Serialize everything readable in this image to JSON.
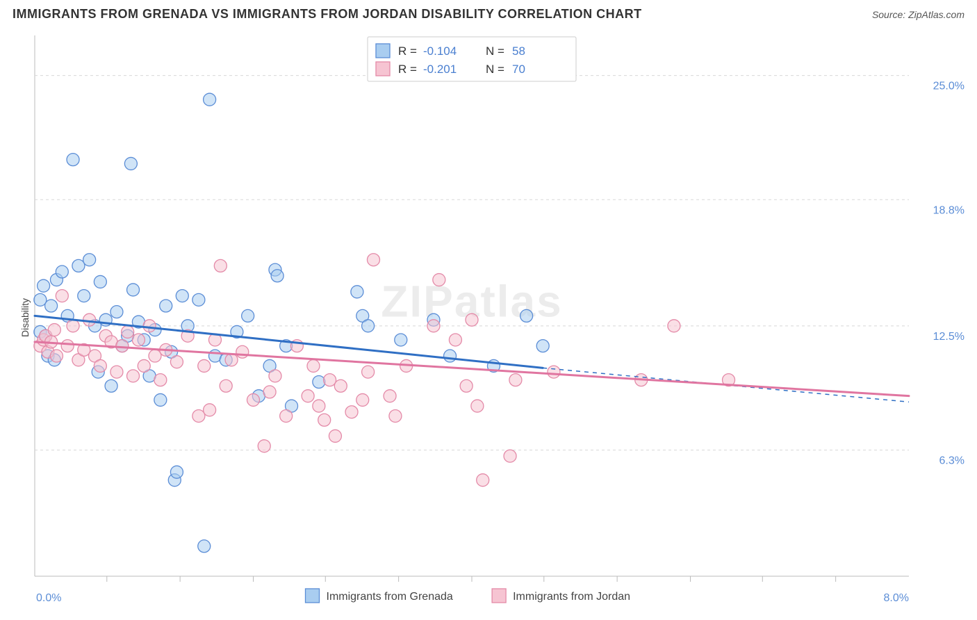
{
  "header": {
    "title": "IMMIGRANTS FROM GRENADA VS IMMIGRANTS FROM JORDAN DISABILITY CORRELATION CHART",
    "source_prefix": "Source: ",
    "source_name": "ZipAtlas.com"
  },
  "chart": {
    "type": "scatter",
    "ylabel": "Disability",
    "watermark": "ZIPatlas",
    "background_color": "#ffffff",
    "plot_border_color": "#bbbbbb",
    "grid_color": "#d8d8d8",
    "xlim": [
      0.0,
      8.0
    ],
    "ylim": [
      0.0,
      27.0
    ],
    "xticks": [
      0.66,
      1.33,
      2.0,
      2.66,
      3.33,
      4.0,
      4.66,
      5.33,
      6.0,
      6.66,
      7.33
    ],
    "yticks": [
      {
        "v": 25.0,
        "label": "25.0%"
      },
      {
        "v": 18.8,
        "label": "18.8%"
      },
      {
        "v": 12.5,
        "label": "12.5%"
      },
      {
        "v": 6.3,
        "label": "6.3%"
      }
    ],
    "x_axis_labels": {
      "left": "0.0%",
      "right": "8.0%"
    },
    "marker_radius": 9,
    "marker_stroke_width": 1.3,
    "series": [
      {
        "name": "Immigrants from Grenada",
        "fill": "#a9cdf0",
        "stroke": "#5b8dd6",
        "fill_opacity": 0.55,
        "points": [
          [
            0.05,
            13.8
          ],
          [
            0.05,
            12.2
          ],
          [
            0.08,
            14.5
          ],
          [
            0.1,
            12.0
          ],
          [
            0.12,
            11.0
          ],
          [
            0.15,
            13.5
          ],
          [
            0.18,
            10.8
          ],
          [
            0.2,
            14.8
          ],
          [
            0.25,
            15.2
          ],
          [
            0.3,
            13.0
          ],
          [
            0.35,
            20.8
          ],
          [
            0.4,
            15.5
          ],
          [
            0.45,
            14.0
          ],
          [
            0.5,
            15.8
          ],
          [
            0.55,
            12.5
          ],
          [
            0.58,
            10.2
          ],
          [
            0.6,
            14.7
          ],
          [
            0.65,
            12.8
          ],
          [
            0.7,
            9.5
          ],
          [
            0.75,
            13.2
          ],
          [
            0.8,
            11.5
          ],
          [
            0.85,
            12.0
          ],
          [
            0.88,
            20.6
          ],
          [
            0.9,
            14.3
          ],
          [
            0.95,
            12.7
          ],
          [
            1.0,
            11.8
          ],
          [
            1.05,
            10.0
          ],
          [
            1.1,
            12.3
          ],
          [
            1.15,
            8.8
          ],
          [
            1.2,
            13.5
          ],
          [
            1.25,
            11.2
          ],
          [
            1.28,
            4.8
          ],
          [
            1.3,
            5.2
          ],
          [
            1.35,
            14.0
          ],
          [
            1.4,
            12.5
          ],
          [
            1.5,
            13.8
          ],
          [
            1.55,
            1.5
          ],
          [
            1.6,
            23.8
          ],
          [
            1.65,
            11.0
          ],
          [
            1.75,
            10.8
          ],
          [
            1.85,
            12.2
          ],
          [
            1.95,
            13.0
          ],
          [
            2.05,
            9.0
          ],
          [
            2.15,
            10.5
          ],
          [
            2.2,
            15.3
          ],
          [
            2.22,
            15.0
          ],
          [
            2.3,
            11.5
          ],
          [
            2.35,
            8.5
          ],
          [
            2.6,
            9.7
          ],
          [
            2.95,
            14.2
          ],
          [
            3.0,
            13.0
          ],
          [
            3.05,
            12.5
          ],
          [
            3.35,
            11.8
          ],
          [
            3.65,
            12.8
          ],
          [
            3.8,
            11.0
          ],
          [
            4.2,
            10.5
          ],
          [
            4.5,
            13.0
          ],
          [
            4.65,
            11.5
          ]
        ],
        "trend": {
          "y_at_xmin": 13.0,
          "y_at_xsolid_end": 10.4,
          "y_at_xmax": 8.7,
          "solid_end_x": 4.65,
          "color": "#2f6fc4",
          "width": 3
        }
      },
      {
        "name": "Immigrants from Jordan",
        "fill": "#f6c4d2",
        "stroke": "#e48aa8",
        "fill_opacity": 0.55,
        "points": [
          [
            0.05,
            11.5
          ],
          [
            0.08,
            11.8
          ],
          [
            0.1,
            12.0
          ],
          [
            0.12,
            11.2
          ],
          [
            0.15,
            11.7
          ],
          [
            0.18,
            12.3
          ],
          [
            0.2,
            11.0
          ],
          [
            0.25,
            14.0
          ],
          [
            0.3,
            11.5
          ],
          [
            0.35,
            12.5
          ],
          [
            0.4,
            10.8
          ],
          [
            0.45,
            11.3
          ],
          [
            0.5,
            12.8
          ],
          [
            0.55,
            11.0
          ],
          [
            0.6,
            10.5
          ],
          [
            0.65,
            12.0
          ],
          [
            0.7,
            11.7
          ],
          [
            0.75,
            10.2
          ],
          [
            0.8,
            11.5
          ],
          [
            0.85,
            12.2
          ],
          [
            0.9,
            10.0
          ],
          [
            0.95,
            11.8
          ],
          [
            1.0,
            10.5
          ],
          [
            1.05,
            12.5
          ],
          [
            1.1,
            11.0
          ],
          [
            1.15,
            9.8
          ],
          [
            1.2,
            11.3
          ],
          [
            1.3,
            10.7
          ],
          [
            1.4,
            12.0
          ],
          [
            1.5,
            8.0
          ],
          [
            1.55,
            10.5
          ],
          [
            1.6,
            8.3
          ],
          [
            1.65,
            11.8
          ],
          [
            1.7,
            15.5
          ],
          [
            1.75,
            9.5
          ],
          [
            1.8,
            10.8
          ],
          [
            1.9,
            11.2
          ],
          [
            2.0,
            8.8
          ],
          [
            2.1,
            6.5
          ],
          [
            2.15,
            9.2
          ],
          [
            2.2,
            10.0
          ],
          [
            2.3,
            8.0
          ],
          [
            2.4,
            11.5
          ],
          [
            2.5,
            9.0
          ],
          [
            2.55,
            10.5
          ],
          [
            2.6,
            8.5
          ],
          [
            2.65,
            7.8
          ],
          [
            2.7,
            9.8
          ],
          [
            2.75,
            7.0
          ],
          [
            2.8,
            9.5
          ],
          [
            2.9,
            8.2
          ],
          [
            3.0,
            8.8
          ],
          [
            3.05,
            10.2
          ],
          [
            3.1,
            15.8
          ],
          [
            3.25,
            9.0
          ],
          [
            3.3,
            8.0
          ],
          [
            3.4,
            10.5
          ],
          [
            3.65,
            12.5
          ],
          [
            3.7,
            14.8
          ],
          [
            3.85,
            11.8
          ],
          [
            3.95,
            9.5
          ],
          [
            4.0,
            12.8
          ],
          [
            4.05,
            8.5
          ],
          [
            4.1,
            4.8
          ],
          [
            4.35,
            6.0
          ],
          [
            4.4,
            9.8
          ],
          [
            4.75,
            10.2
          ],
          [
            5.55,
            9.8
          ],
          [
            5.85,
            12.5
          ],
          [
            6.35,
            9.8
          ]
        ],
        "trend": {
          "y_at_xmin": 11.7,
          "y_at_xsolid_end": 9.0,
          "y_at_xmax": 9.0,
          "solid_end_x": 8.0,
          "color": "#e075a0",
          "width": 3
        }
      }
    ],
    "legend_top": [
      {
        "swatch_fill": "#a9cdf0",
        "swatch_stroke": "#5b8dd6",
        "r_label": "R =",
        "r_value": "-0.104",
        "n_label": "N =",
        "n_value": "58"
      },
      {
        "swatch_fill": "#f6c4d2",
        "swatch_stroke": "#e48aa8",
        "r_label": "R =",
        "r_value": "-0.201",
        "n_label": "N =",
        "n_value": "70"
      }
    ],
    "legend_bottom": [
      {
        "swatch_fill": "#a9cdf0",
        "swatch_stroke": "#5b8dd6",
        "label": "Immigrants from Grenada"
      },
      {
        "swatch_fill": "#f6c4d2",
        "swatch_stroke": "#e48aa8",
        "label": "Immigrants from Jordan"
      }
    ]
  }
}
